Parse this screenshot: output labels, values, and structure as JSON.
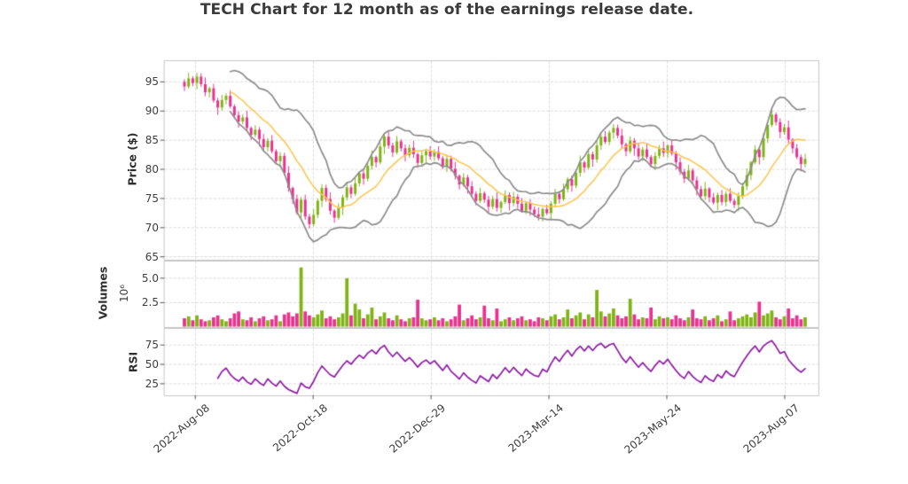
{
  "title": "TECH Chart for 12 month as of the earnings release date.",
  "colors": {
    "up": "#7fb414",
    "down": "#e8338f",
    "sma": "#fdc349",
    "band": "#8b8b8b",
    "rsi": "#8c1ba2",
    "grid": "#dcdcdc",
    "border": "#c6c6c6",
    "tick": "#555555",
    "text": "#3d3d3d",
    "title": "#3a3a3a"
  },
  "axes": {
    "price": {
      "label": "Price ($)",
      "tick_labels": [
        "95",
        "90",
        "85",
        "80",
        "75",
        "70",
        "65"
      ],
      "tick_values": [
        95,
        90,
        85,
        80,
        75,
        70,
        65
      ],
      "ylim": [
        64.5,
        98.7
      ]
    },
    "volume": {
      "label": "Volumes",
      "scale_label": "10⁶",
      "tick_labels": [
        "5.0",
        "2.5"
      ],
      "tick_values": [
        5.0,
        2.5
      ],
      "ylim": [
        0,
        6.8
      ]
    },
    "rsi": {
      "label": "RSI",
      "tick_labels": [
        "75",
        "50",
        "25"
      ],
      "tick_values": [
        75,
        50,
        25
      ],
      "ylim": [
        10,
        97
      ]
    },
    "x": {
      "tick_labels": [
        "2022-Aug-08",
        "2022-Oct-18",
        "2022-Dec-29",
        "2023-Mar-14",
        "2023-May-24",
        "2023-Aug-07"
      ],
      "tick_positions": [
        2.6,
        30.9,
        59.2,
        87.5,
        115.8,
        144.1
      ]
    }
  },
  "chart_data": {
    "type": "candlestick",
    "panels": [
      "price_with_bollinger_bands_and_sma",
      "volume",
      "rsi"
    ],
    "x_tick_labels": [
      "2022-Aug-08",
      "2022-Oct-18",
      "2022-Dec-29",
      "2023-Mar-14",
      "2023-May-24",
      "2023-Aug-07"
    ],
    "x_tick_positions": [
      2.6,
      30.9,
      59.2,
      87.5,
      115.8,
      144.1
    ],
    "price_ylim": [
      64.5,
      98.7
    ],
    "volume_ylim_millions": [
      0,
      6.8
    ],
    "rsi_ylim": [
      10,
      97
    ],
    "indicator_lines": [
      "bollinger_upper",
      "bollinger_lower",
      "sma_mid",
      "rsi"
    ],
    "open": [
      95.0,
      94.2,
      95.6,
      94.8,
      95.9,
      94.6,
      93.2,
      93.9,
      91.8,
      90.6,
      91.9,
      92.6,
      90.8,
      89.3,
      88.2,
      88.9,
      87.1,
      85.9,
      86.8,
      85.2,
      83.8,
      84.9,
      83.1,
      81.4,
      82.3,
      79.4,
      76.8,
      74.9,
      72.6,
      74.8,
      71.9,
      70.6,
      72.2,
      74.6,
      76.8,
      74.9,
      72.9,
      71.7,
      73.4,
      75.2,
      76.9,
      75.8,
      77.6,
      79.3,
      78.4,
      80.6,
      82.1,
      81.2,
      83.9,
      85.6,
      84.1,
      82.9,
      84.8,
      83.6,
      82.4,
      83.7,
      82.6,
      81.1,
      82.4,
      83.1,
      82.2,
      83.0,
      81.9,
      80.6,
      81.8,
      80.1,
      78.9,
      77.4,
      78.6,
      77.1,
      75.8,
      74.6,
      75.9,
      74.8,
      73.6,
      74.9,
      73.4,
      74.4,
      75.6,
      74.2,
      75.3,
      74.1,
      72.9,
      74.2,
      73.1,
      72.3,
      71.9,
      73.2,
      72.5,
      74.1,
      75.8,
      74.9,
      76.6,
      78.3,
      77.2,
      79.4,
      81.2,
      80.3,
      82.6,
      81.7,
      84.1,
      85.6,
      84.7,
      86.3,
      87.1,
      85.8,
      84.3,
      83.1,
      84.9,
      83.6,
      82.2,
      83.4,
      82.1,
      80.9,
      82.3,
      83.6,
      82.8,
      84.1,
      82.7,
      81.2,
      79.6,
      78.4,
      79.8,
      78.1,
      76.6,
      75.4,
      76.7,
      75.2,
      74.3,
      75.6,
      74.4,
      75.8,
      74.6,
      73.9,
      75.4,
      77.1,
      79.0,
      81.2,
      83.4,
      82.1,
      85.3,
      87.6,
      89.4,
      88.1,
      86.4,
      87.2,
      85.1,
      83.6,
      82.1,
      80.9
    ],
    "high": [
      95.4,
      96.5,
      95.9,
      96.5,
      96.4,
      95.7,
      94.1,
      94.6,
      92.2,
      92.7,
      93.0,
      93.5,
      91.1,
      89.9,
      89.4,
      90.0,
      87.3,
      87.5,
      87.2,
      86.0,
      85.3,
      85.8,
      83.4,
      82.9,
      82.8,
      80.5,
      77.0,
      75.6,
      75.2,
      75.6,
      72.3,
      73.1,
      74.9,
      77.4,
      77.3,
      76.0,
      73.1,
      74.1,
      75.6,
      77.7,
      77.3,
      78.5,
      79.6,
      79.9,
      81.1,
      83.2,
      82.3,
      84.6,
      86.0,
      86.4,
      84.5,
      85.7,
      85.1,
      84.2,
      84.2,
      84.8,
      82.8,
      83.1,
      83.5,
      83.9,
      83.4,
      83.9,
      82.2,
      82.4,
      82.3,
      81.2,
      79.1,
      79.3,
      79.0,
      77.9,
      76.2,
      76.8,
      76.2,
      75.4,
      75.4,
      76.0,
      74.6,
      76.3,
      76.0,
      76.1,
      75.7,
      75.0,
      74.5,
      74.8,
      73.6,
      73.4,
      73.4,
      73.9,
      74.5,
      76.6,
      76.2,
      77.5,
      78.6,
      78.9,
      79.9,
      82.3,
      81.4,
      83.3,
      83.0,
      84.9,
      86.0,
      86.5,
      86.6,
      87.7,
      87.6,
      86.9,
      84.5,
      85.6,
      85.3,
      84.4,
      83.8,
      84.3,
      82.4,
      82.9,
      84.1,
      84.7,
      84.3,
      84.8,
      83.1,
      82.0,
      80.0,
      80.7,
      80.1,
      78.7,
      77.1,
      77.8,
      76.9,
      75.9,
      76.0,
      76.4,
      76.2,
      76.7,
      74.9,
      76.0,
      77.6,
      80.1,
      81.4,
      84.1,
      83.8,
      86.1,
      88.0,
      90.3,
      89.7,
      88.7,
      87.7,
      88.3,
      85.3,
      84.3,
      82.5,
      82.6
    ],
    "low": [
      93.5,
      93.9,
      94.3,
      93.8,
      94.2,
      92.6,
      92.4,
      91.5,
      89.4,
      90.1,
      91.2,
      90.5,
      88.8,
      87.2,
      87.8,
      86.5,
      85.1,
      85.6,
      84.0,
      83.3,
      83.1,
      82.8,
      80.9,
      80.4,
      79.0,
      76.2,
      74.1,
      72.3,
      71.4,
      71.4,
      69.9,
      70.3,
      71.7,
      73.6,
      74.5,
      72.3,
      70.9,
      71.4,
      72.2,
      74.7,
      75.1,
      75.5,
      77.1,
      77.4,
      78.0,
      80.0,
      80.4,
      80.9,
      82.7,
      83.6,
      82.2,
      82.6,
      83.1,
      81.4,
      82.0,
      82.0,
      80.3,
      80.8,
      81.2,
      81.7,
      81.5,
      81.6,
      80.1,
      79.6,
      79.7,
      78.3,
      76.6,
      77.1,
      75.9,
      75.3,
      73.9,
      74.3,
      74.3,
      72.6,
      73.2,
      72.8,
      72.6,
      74.1,
      73.0,
      73.7,
      73.4,
      72.6,
      72.4,
      72.1,
      71.9,
      71.3,
      71.1,
      72.2,
      71.3,
      73.6,
      74.2,
      74.6,
      76.1,
      76.2,
      76.8,
      78.8,
      79.5,
      80.0,
      80.5,
      81.2,
      83.4,
      84.4,
      84.2,
      85.3,
      85.4,
      83.7,
      82.3,
      82.8,
      82.4,
      81.7,
      81.5,
      81.8,
      80.4,
      79.9,
      81.9,
      82.2,
      82.0,
      82.4,
      80.0,
      79.1,
      77.7,
      78.1,
      77.6,
      75.6,
      75.0,
      74.8,
      74.4,
      74.0,
      73.1,
      73.9,
      73.7,
      74.3,
      73.4,
      72.9,
      75.0,
      76.5,
      78.2,
      80.9,
      80.9,
      81.6,
      84.6,
      87.3,
      87.6,
      85.4,
      86.0,
      84.5,
      82.8,
      81.8,
      79.7,
      80.4
    ],
    "close": [
      94.2,
      95.6,
      94.8,
      95.9,
      94.6,
      93.2,
      93.9,
      91.8,
      90.6,
      91.9,
      92.6,
      90.8,
      89.3,
      88.2,
      88.9,
      87.1,
      85.9,
      86.8,
      85.2,
      83.8,
      84.9,
      83.1,
      81.4,
      82.3,
      79.4,
      76.8,
      74.9,
      72.6,
      74.8,
      71.9,
      70.6,
      72.2,
      74.6,
      76.8,
      74.9,
      72.9,
      71.7,
      73.4,
      75.2,
      76.9,
      75.8,
      77.6,
      79.3,
      78.4,
      80.6,
      82.1,
      81.2,
      83.9,
      85.6,
      84.1,
      82.9,
      84.8,
      83.6,
      82.4,
      83.7,
      82.6,
      81.1,
      82.4,
      83.1,
      82.2,
      83.0,
      81.9,
      80.6,
      81.8,
      80.1,
      78.9,
      77.4,
      78.6,
      77.1,
      75.8,
      74.6,
      75.9,
      74.8,
      73.6,
      74.9,
      73.4,
      74.4,
      75.6,
      74.2,
      75.3,
      74.1,
      72.9,
      74.2,
      73.1,
      72.3,
      71.9,
      73.2,
      72.5,
      74.1,
      75.8,
      74.9,
      76.6,
      78.3,
      77.2,
      79.4,
      81.2,
      80.3,
      82.6,
      81.7,
      84.1,
      85.6,
      84.7,
      86.3,
      87.1,
      85.8,
      84.3,
      83.1,
      84.9,
      83.6,
      82.2,
      83.4,
      82.1,
      80.9,
      82.3,
      83.6,
      82.8,
      84.1,
      82.7,
      81.2,
      79.6,
      78.4,
      79.8,
      78.1,
      76.6,
      75.4,
      76.7,
      75.2,
      74.3,
      75.6,
      74.4,
      75.8,
      74.6,
      73.9,
      75.4,
      77.1,
      79.0,
      81.2,
      83.4,
      82.1,
      85.3,
      87.6,
      89.4,
      88.1,
      86.4,
      87.2,
      85.1,
      83.6,
      82.1,
      80.9,
      81.8
    ],
    "volume_millions": [
      0.9,
      1.1,
      0.7,
      1.2,
      0.8,
      0.6,
      0.7,
      1.0,
      1.2,
      0.8,
      0.6,
      0.9,
      1.4,
      1.6,
      0.8,
      0.7,
      1.0,
      0.6,
      0.9,
      1.1,
      0.7,
      0.8,
      1.2,
      0.6,
      1.3,
      1.5,
      1.1,
      1.4,
      6.1,
      1.6,
      1.2,
      1.0,
      1.3,
      1.7,
      0.9,
      1.1,
      0.8,
      1.0,
      1.4,
      5.0,
      1.2,
      2.4,
      1.8,
      0.9,
      1.3,
      2.0,
      0.8,
      1.1,
      1.5,
      0.9,
      0.7,
      1.2,
      0.8,
      0.6,
      0.9,
      1.0,
      2.8,
      0.9,
      0.7,
      0.8,
      1.0,
      0.7,
      0.9,
      0.6,
      0.8,
      1.1,
      2.3,
      0.7,
      0.9,
      1.2,
      0.8,
      1.0,
      2.2,
      0.9,
      0.7,
      1.9,
      0.6,
      0.8,
      1.0,
      0.7,
      0.9,
      1.1,
      0.7,
      0.8,
      0.6,
      1.0,
      0.9,
      0.7,
      1.1,
      1.3,
      0.8,
      1.0,
      1.8,
      0.9,
      1.2,
      1.5,
      0.8,
      1.3,
      1.0,
      3.8,
      1.6,
      1.1,
      1.4,
      1.9,
      1.2,
      0.9,
      1.1,
      2.9,
      1.3,
      0.8,
      1.0,
      0.9,
      2.0,
      0.8,
      1.1,
      0.9,
      1.0,
      0.8,
      1.2,
      0.9,
      0.7,
      1.0,
      1.8,
      0.9,
      0.8,
      1.1,
      0.7,
      0.9,
      1.2,
      0.6,
      0.8,
      1.6,
      0.7,
      0.9,
      1.1,
      1.3,
      1.0,
      1.5,
      2.6,
      1.2,
      1.4,
      1.7,
      1.0,
      0.8,
      1.1,
      1.9,
      0.9,
      1.2,
      0.8,
      1.0
    ]
  }
}
